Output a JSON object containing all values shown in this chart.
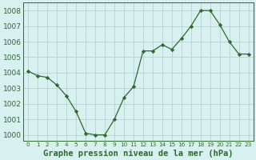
{
  "x": [
    0,
    1,
    2,
    3,
    4,
    5,
    6,
    7,
    8,
    9,
    10,
    11,
    12,
    13,
    14,
    15,
    16,
    17,
    18,
    19,
    20,
    21,
    22,
    23
  ],
  "y": [
    1004.1,
    1003.8,
    1003.7,
    1003.2,
    1002.5,
    1001.5,
    1000.1,
    1000.0,
    1000.0,
    1001.0,
    1002.4,
    1003.1,
    1005.4,
    1005.4,
    1005.8,
    1005.5,
    1006.2,
    1007.0,
    1008.0,
    1008.0,
    1007.1,
    1006.0,
    1005.2,
    1005.2
  ],
  "line_color": "#2d6a2d",
  "marker": "D",
  "marker_size": 2.2,
  "bg_color": "#d8f0f0",
  "grid_color": "#b8d0d0",
  "xlabel": "Graphe pression niveau de la mer (hPa)",
  "xlabel_fontsize": 7.5,
  "ytick_fontsize": 6.5,
  "xtick_fontsize": 5.2,
  "yticks": [
    1000,
    1001,
    1002,
    1003,
    1004,
    1005,
    1006,
    1007,
    1008
  ],
  "xtick_labels": [
    "0",
    "1",
    "2",
    "3",
    "4",
    "5",
    "6",
    "7",
    "8",
    "9",
    "10",
    "11",
    "12",
    "13",
    "14",
    "15",
    "16",
    "17",
    "18",
    "19",
    "20",
    "21",
    "22",
    "23"
  ],
  "ylim": [
    999.6,
    1008.5
  ],
  "xlim": [
    -0.5,
    23.5
  ]
}
